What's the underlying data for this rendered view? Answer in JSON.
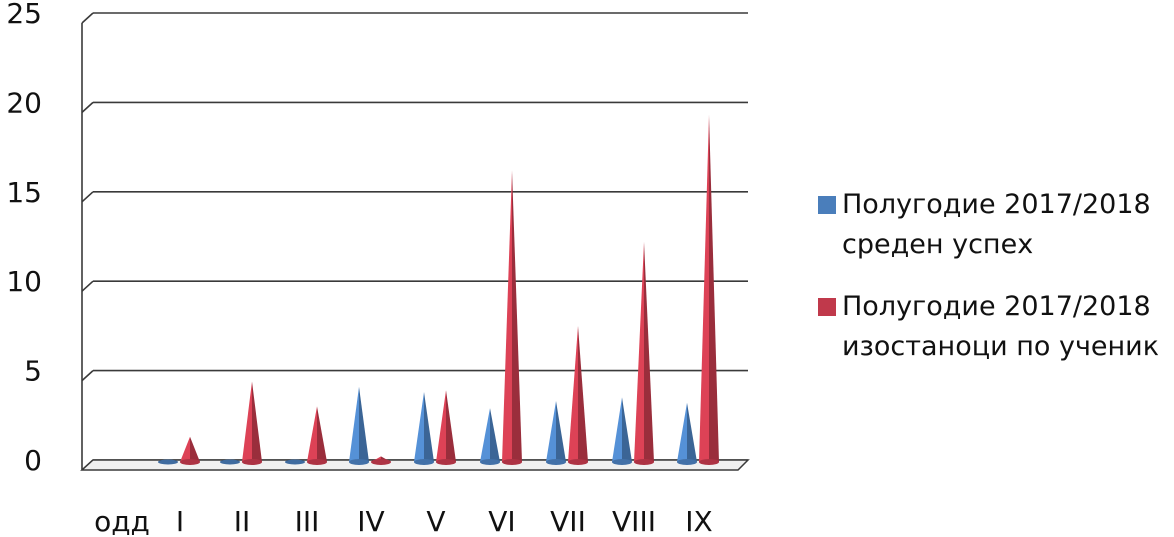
{
  "chart_data": {
    "type": "bar",
    "style": "3d-cone",
    "xlabel": "",
    "ylabel": "",
    "ylim": [
      0,
      25
    ],
    "yticks": [
      0,
      5,
      10,
      15,
      20,
      25
    ],
    "grid": true,
    "legend_position": "right",
    "categories": [
      "одд",
      "I",
      "II",
      "III",
      "IV",
      "V",
      "VI",
      "VII",
      "VIII",
      "IX"
    ],
    "series": [
      {
        "name": "Полугодие 2017/2018 среден успех",
        "color": "#4a7ebb",
        "values": [
          null,
          0,
          0,
          0,
          4.1,
          3.8,
          2.9,
          3.3,
          3.5,
          3.2
        ]
      },
      {
        "name": "Полугодие 2017/2018 изостаноци по ученик",
        "color": "#c0394b",
        "values": [
          null,
          1.3,
          4.4,
          3.0,
          0.2,
          3.9,
          16.2,
          7.5,
          12.2,
          19.3
        ]
      }
    ]
  }
}
